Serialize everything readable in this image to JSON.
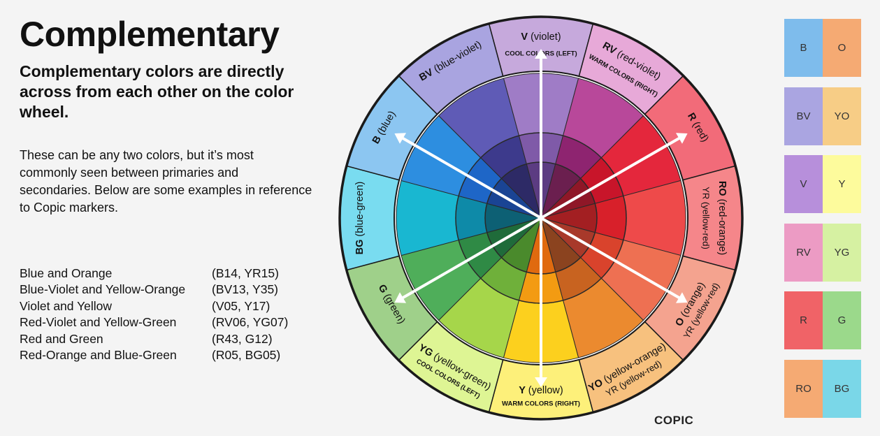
{
  "header": {
    "title": "Complementary",
    "subtitle": "Complementary colors are directly across from each other on the color wheel.",
    "description": "These can be any two colors, but it’s most commonly seen between primaries and secondaries. Below are some examples in reference to Copic markers."
  },
  "pairs": [
    {
      "name": "Blue and Orange",
      "codes": "(B14, YR15)"
    },
    {
      "name": "Blue-Violet and Yellow-Orange",
      "codes": "(BV13, Y35)"
    },
    {
      "name": "Violet and Yellow",
      "codes": "(V05, Y17)"
    },
    {
      "name": "Red-Violet and Yellow-Green",
      "codes": "(RV06, YG07)"
    },
    {
      "name": "Red and Green",
      "codes": "(R43, G12)"
    },
    {
      "name": "Red-Orange and Blue-Green",
      "codes": "(R05, BG05)"
    }
  ],
  "wheel": {
    "segments": [
      {
        "abbr": "V",
        "name": "(violet)",
        "sub": "COOL COLORS (LEFT)",
        "outer": "#c6a9dc",
        "ring2": "#9f7cc6",
        "ring3": "#7f5aa8",
        "ring4": "#5c3c82"
      },
      {
        "abbr": "RV",
        "name": "(red-violet)",
        "sub": "WARM COLORS (RIGHT)",
        "outer": "#e7a9d8",
        "ring2": "#b8489a",
        "ring3": "#8e2470",
        "ring4": "#6b1f4f"
      },
      {
        "abbr": "R",
        "name": "(red)",
        "sub": "",
        "outer": "#f26b79",
        "ring2": "#e4273c",
        "ring3": "#c8152a",
        "ring4": "#8f1727"
      },
      {
        "abbr": "RO",
        "name": "(red-orange)",
        "sub": "YR (yellow-red)",
        "outer": "#f5868a",
        "ring2": "#ee4a4a",
        "ring3": "#d8202a",
        "ring4": "#a31f22"
      },
      {
        "abbr": "O",
        "name": "(orange)",
        "sub": "YR (yellow-red)",
        "outer": "#f4a38f",
        "ring2": "#ee7052",
        "ring3": "#d9432c",
        "ring4": "#a8392a"
      },
      {
        "abbr": "YO",
        "name": "(yellow-orange)",
        "sub": "YR (yellow-red)",
        "outer": "#f7c17e",
        "ring2": "#eb8a2f",
        "ring3": "#c86320",
        "ring4": "#8b431f"
      },
      {
        "abbr": "Y",
        "name": "(yellow)",
        "sub": "WARM COLORS (RIGHT)",
        "outer": "#fdf07a",
        "ring2": "#fcd01e",
        "ring3": "#f39b12",
        "ring4": "#e06a0f"
      },
      {
        "abbr": "YG",
        "name": "(yellow-green)",
        "sub": "COOL COLORS (LEFT)",
        "outer": "#def594",
        "ring2": "#a6d64a",
        "ring3": "#6fb03a",
        "ring4": "#4a8a2c"
      },
      {
        "abbr": "G",
        "name": "(green)",
        "sub": "",
        "outer": "#9fd08a",
        "ring2": "#4fae5a",
        "ring3": "#2f8a45",
        "ring4": "#1f6b3a"
      },
      {
        "abbr": "BG",
        "name": "(blue-green)",
        "sub": "",
        "outer": "#79dcf0",
        "ring2": "#19b7d1",
        "ring3": "#0e8aa8",
        "ring4": "#0d6074"
      },
      {
        "abbr": "B",
        "name": "(blue)",
        "sub": "",
        "outer": "#8cc6f1",
        "ring2": "#2d8ee0",
        "ring3": "#1e66c7",
        "ring4": "#1a4494"
      },
      {
        "abbr": "BV",
        "name": "(blue-violet)",
        "sub": "",
        "outer": "#a9a4e0",
        "ring2": "#5f5bb6",
        "ring3": "#3d3a8c",
        "ring4": "#2d2a66"
      }
    ],
    "logo": "COPIC"
  },
  "swatches": [
    {
      "left": {
        "label": "B",
        "color": "#7ebcec"
      },
      "right": {
        "label": "O",
        "color": "#f5aa73"
      }
    },
    {
      "left": {
        "label": "BV",
        "color": "#aaa5e1"
      },
      "right": {
        "label": "YO",
        "color": "#f7cd86"
      }
    },
    {
      "left": {
        "label": "V",
        "color": "#b78fdb"
      },
      "right": {
        "label": "Y",
        "color": "#fdfb9c"
      }
    },
    {
      "left": {
        "label": "RV",
        "color": "#ec9bc4"
      },
      "right": {
        "label": "YG",
        "color": "#d6f1a2"
      }
    },
    {
      "left": {
        "label": "R",
        "color": "#f06367"
      },
      "right": {
        "label": "G",
        "color": "#9bd98b"
      }
    },
    {
      "left": {
        "label": "RO",
        "color": "#f5aa73"
      },
      "right": {
        "label": "BG",
        "color": "#7ad7e8"
      }
    }
  ]
}
